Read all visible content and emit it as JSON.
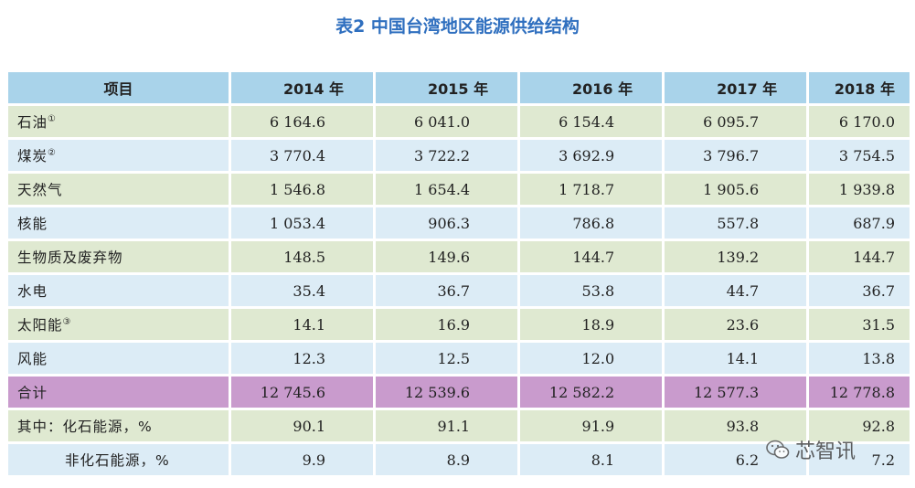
{
  "title": "表2 中国台湾地区能源供给结构",
  "header": [
    "项目",
    "2014 年",
    "2015 年",
    "2016 年",
    "2017 年",
    "2018 年"
  ],
  "rows": [
    {
      "name": "石油",
      "sup": "①",
      "values": [
        "6 164.6",
        "6 041.0",
        "6 154.4",
        "6 095.7",
        "6 170.0"
      ]
    },
    {
      "name": "煤炭",
      "sup": "②",
      "values": [
        "3 770.4",
        "3 722.2",
        "3 692.9",
        "3 796.7",
        "3 754.5"
      ]
    },
    {
      "name": "天然气",
      "sup": "",
      "values": [
        "1 546.8",
        "1 654.4",
        "1 718.7",
        "1 905.6",
        "1 939.8"
      ]
    },
    {
      "name": "核能",
      "sup": "",
      "values": [
        "1 053.4",
        "906.3",
        "786.8",
        "557.8",
        "687.9"
      ]
    },
    {
      "name": "生物质及废弃物",
      "sup": "",
      "values": [
        "148.5",
        "149.6",
        "144.7",
        "139.2",
        "144.7"
      ]
    },
    {
      "name": "水电",
      "sup": "",
      "values": [
        "35.4",
        "36.7",
        "53.8",
        "44.7",
        "36.7"
      ]
    },
    {
      "name": "太阳能",
      "sup": "③",
      "values": [
        "14.1",
        "16.9",
        "18.9",
        "23.6",
        "31.5"
      ]
    },
    {
      "name": "风能",
      "sup": "",
      "values": [
        "12.3",
        "12.5",
        "12.0",
        "14.1",
        "13.8"
      ]
    },
    {
      "name": "合计",
      "sup": "",
      "values": [
        "12 745.6",
        "12 539.6",
        "12 582.2",
        "12 577.3",
        "12 778.8"
      ]
    },
    {
      "name": "其中：化石能源，%",
      "sup": "",
      "values": [
        "90.1",
        "91.1",
        "91.9",
        "93.8",
        "92.8"
      ]
    },
    {
      "name": "非化石能源，%",
      "sup": "",
      "values": [
        "9.9",
        "8.9",
        "8.1",
        "6.2",
        "7.2"
      ]
    }
  ],
  "watermark": {
    "text": "芯智讯",
    "icon": "wechat-icon"
  }
}
